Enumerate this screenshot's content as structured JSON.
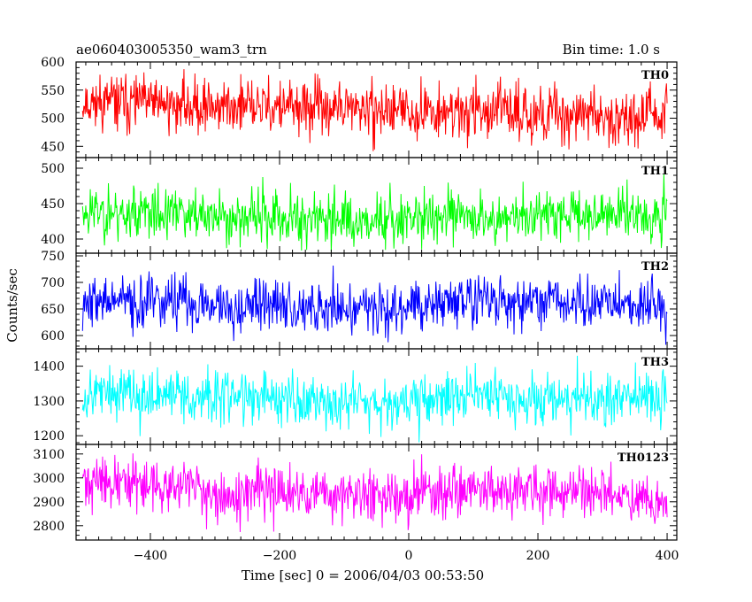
{
  "chart_data": {
    "type": "line",
    "title_left": "ae060403005350_wam3_trn",
    "title_right": "Bin time: 1.0 s",
    "xlabel": "Time [sec] 0 = 2006/04/03 00:53:50",
    "ylabel": "Counts/sec",
    "xlim": [
      -515,
      415
    ],
    "x_ticks": [
      -400,
      -200,
      0,
      200,
      400
    ],
    "x_tick_labels": [
      "−400",
      "−200",
      "0",
      "200",
      "400"
    ],
    "x_range": [
      -505,
      400
    ],
    "grid": false,
    "panels": [
      {
        "name": "TH0",
        "color": "#ff0000",
        "ylim": [
          430,
          600
        ],
        "y_ticks": [
          450,
          500,
          550,
          600
        ],
        "trend": [
          [
            -505,
            530
          ],
          [
            -300,
            522
          ],
          [
            -100,
            516
          ],
          [
            0,
            512
          ],
          [
            100,
            513
          ],
          [
            250,
            507
          ],
          [
            400,
            502
          ]
        ],
        "noise": 24,
        "seed": 11
      },
      {
        "name": "TH1",
        "color": "#00ff00",
        "ylim": [
          380,
          515
        ],
        "y_ticks": [
          400,
          450,
          500
        ],
        "trend": [
          [
            -505,
            440
          ],
          [
            -300,
            432
          ],
          [
            -100,
            428
          ],
          [
            0,
            430
          ],
          [
            200,
            433
          ],
          [
            400,
            438
          ]
        ],
        "noise": 19,
        "seed": 23
      },
      {
        "name": "TH2",
        "color": "#0000ff",
        "ylim": [
          575,
          755
        ],
        "y_ticks": [
          600,
          650,
          700,
          750
        ],
        "trend": [
          [
            -505,
            665
          ],
          [
            -300,
            660
          ],
          [
            -100,
            652
          ],
          [
            0,
            655
          ],
          [
            100,
            668
          ],
          [
            250,
            660
          ],
          [
            400,
            655
          ]
        ],
        "noise": 25,
        "seed": 37
      },
      {
        "name": "TH3",
        "color": "#00ffff",
        "ylim": [
          1175,
          1450
        ],
        "y_ticks": [
          1200,
          1300,
          1400
        ],
        "trend": [
          [
            -505,
            1325
          ],
          [
            -300,
            1312
          ],
          [
            -100,
            1302
          ],
          [
            0,
            1300
          ],
          [
            100,
            1318
          ],
          [
            250,
            1308
          ],
          [
            400,
            1305
          ]
        ],
        "noise": 38,
        "seed": 53
      },
      {
        "name": "TH0123",
        "color": "#ff00ff",
        "ylim": [
          2740,
          3140
        ],
        "y_ticks": [
          2800,
          2900,
          3000,
          3100
        ],
        "trend": [
          [
            -505,
            2990
          ],
          [
            -400,
            2965
          ],
          [
            -250,
            2935
          ],
          [
            -100,
            2925
          ],
          [
            0,
            2930
          ],
          [
            100,
            2965
          ],
          [
            250,
            2935
          ],
          [
            400,
            2905
          ]
        ],
        "noise": 55,
        "seed": 71
      }
    ]
  }
}
